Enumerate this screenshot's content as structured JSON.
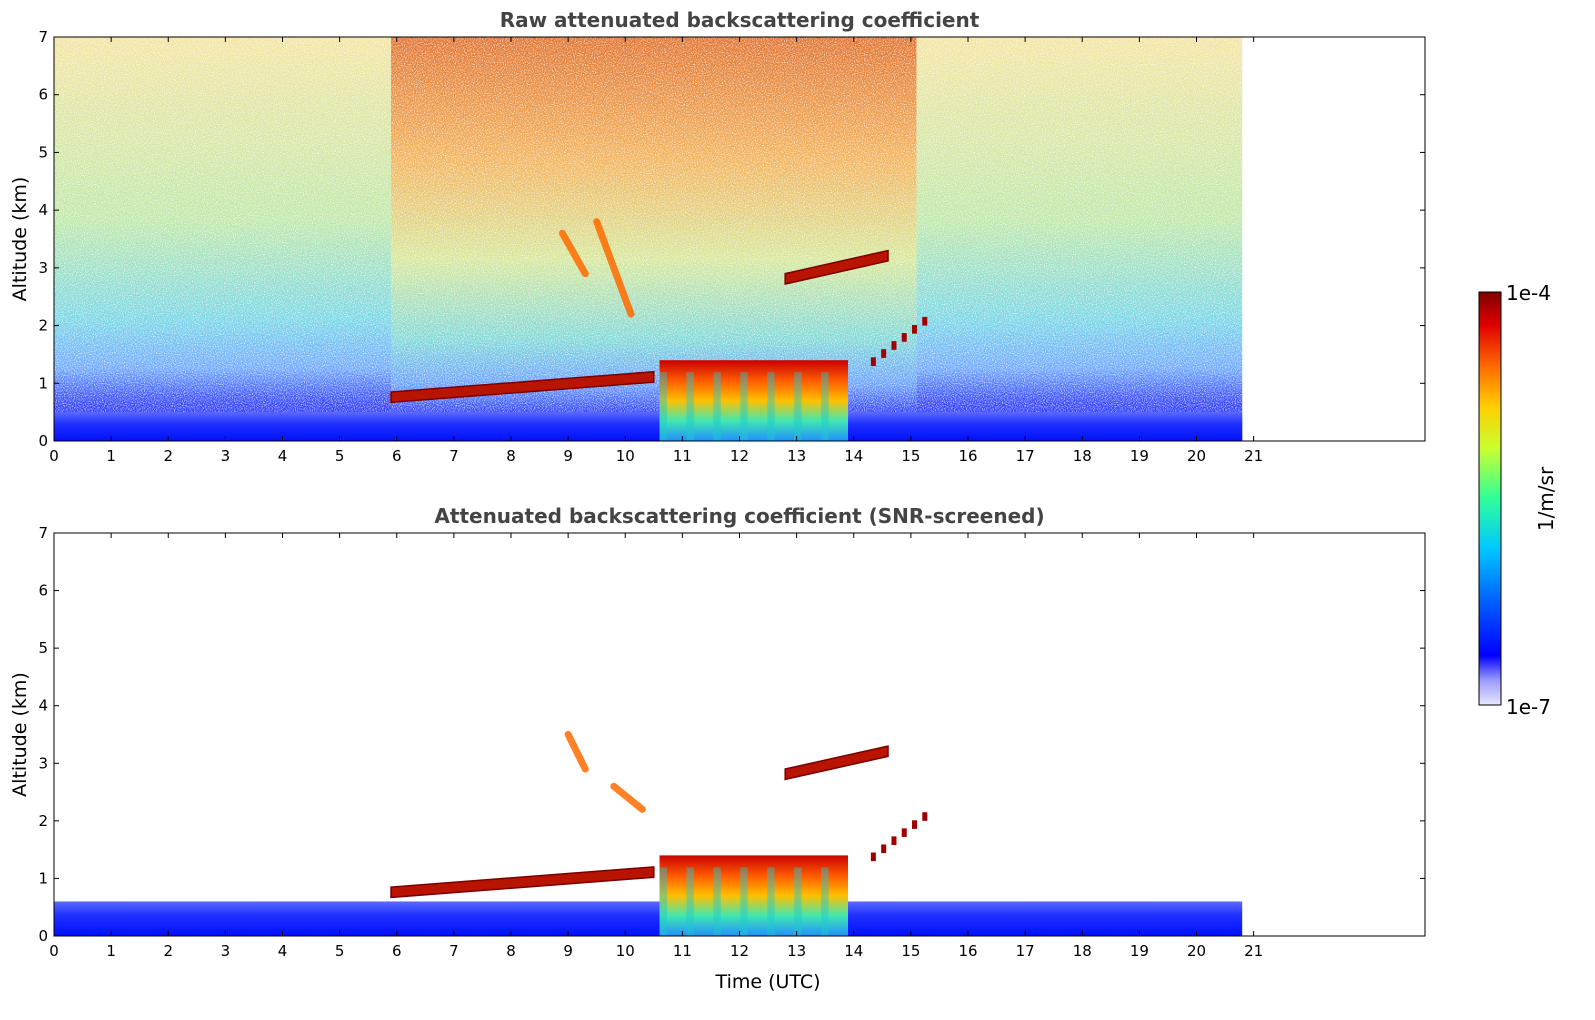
{
  "chart_data": [
    {
      "type": "heatmap",
      "title": "Raw attenuated backscattering coefficient",
      "xlabel": "",
      "ylabel": "Altitude (km)",
      "xlim": [
        0,
        24
      ],
      "ylim": [
        0,
        7
      ],
      "x_ticks": [
        "0",
        "1",
        "2",
        "3",
        "4",
        "5",
        "6",
        "7",
        "8",
        "9",
        "10",
        "11",
        "12",
        "13",
        "14",
        "15",
        "16",
        "17",
        "18",
        "19",
        "20",
        "21"
      ],
      "y_ticks": [
        "0",
        "1",
        "2",
        "3",
        "4",
        "5",
        "6",
        "7"
      ],
      "data_end_time": 20.8,
      "features": [
        {
          "kind": "noisy-background",
          "t0": 0,
          "t1": 5.9,
          "level": "moderate"
        },
        {
          "kind": "noisy-background",
          "t0": 5.9,
          "t1": 15.1,
          "level": "high"
        },
        {
          "kind": "noisy-background",
          "t0": 15.1,
          "t1": 20.8,
          "level": "moderate"
        },
        {
          "kind": "boundary-layer",
          "t0": 0,
          "t1": 20.8,
          "top_km": 0.5
        },
        {
          "kind": "aerosol-layer",
          "t0": 5.9,
          "t1": 10.5,
          "alt_km_start": 0.85,
          "alt_km_end": 1.2
        },
        {
          "kind": "dense-cloud",
          "t0": 10.6,
          "t1": 13.9,
          "top_km": 1.4
        },
        {
          "kind": "cloud-streak",
          "t0": 8.9,
          "t1": 9.3,
          "alt_km_start": 3.6,
          "alt_km_end": 2.9
        },
        {
          "kind": "cloud-streak",
          "t0": 9.5,
          "t1": 10.1,
          "alt_km_start": 3.8,
          "alt_km_end": 2.2
        },
        {
          "kind": "cloud-layer",
          "t0": 12.8,
          "t1": 14.6,
          "alt_km_start": 2.9,
          "alt_km_end": 3.3
        },
        {
          "kind": "cloud-fragments",
          "t0": 14.3,
          "t1": 15.2,
          "alt_km_start": 1.3,
          "alt_km_end": 2.0
        }
      ]
    },
    {
      "type": "heatmap",
      "title": "Attenuated backscattering coefficient (SNR-screened)",
      "xlabel": "Time (UTC)",
      "ylabel": "Altitude (km)",
      "xlim": [
        0,
        24
      ],
      "ylim": [
        0,
        7
      ],
      "x_ticks": [
        "0",
        "1",
        "2",
        "3",
        "4",
        "5",
        "6",
        "7",
        "8",
        "9",
        "10",
        "11",
        "12",
        "13",
        "14",
        "15",
        "16",
        "17",
        "18",
        "19",
        "20",
        "21"
      ],
      "y_ticks": [
        "0",
        "1",
        "2",
        "3",
        "4",
        "5",
        "6",
        "7"
      ],
      "data_end_time": 20.8,
      "features": [
        {
          "kind": "boundary-layer",
          "t0": 0,
          "t1": 20.8,
          "top_km": 0.6
        },
        {
          "kind": "aerosol-layer",
          "t0": 5.9,
          "t1": 10.5,
          "alt_km_start": 0.85,
          "alt_km_end": 1.2
        },
        {
          "kind": "dense-cloud",
          "t0": 10.6,
          "t1": 13.9,
          "top_km": 1.4
        },
        {
          "kind": "cloud-streak",
          "t0": 9.0,
          "t1": 9.3,
          "alt_km_start": 3.5,
          "alt_km_end": 2.9
        },
        {
          "kind": "cloud-streak",
          "t0": 9.8,
          "t1": 10.3,
          "alt_km_start": 2.6,
          "alt_km_end": 2.2
        },
        {
          "kind": "cloud-layer",
          "t0": 12.8,
          "t1": 14.6,
          "alt_km_start": 2.9,
          "alt_km_end": 3.3
        },
        {
          "kind": "cloud-fragments",
          "t0": 14.3,
          "t1": 15.2,
          "alt_km_start": 1.3,
          "alt_km_end": 2.0
        }
      ]
    }
  ],
  "colorbar": {
    "label": "1/m/sr",
    "max_label": "1e-4",
    "min_label": "1e-7",
    "colors": [
      "#e8e8ff",
      "#9a9aff",
      "#0000ff",
      "#0060ff",
      "#00c8ff",
      "#30ff9a",
      "#c8ff30",
      "#ffd000",
      "#ff6a00",
      "#e00000",
      "#800000"
    ]
  }
}
